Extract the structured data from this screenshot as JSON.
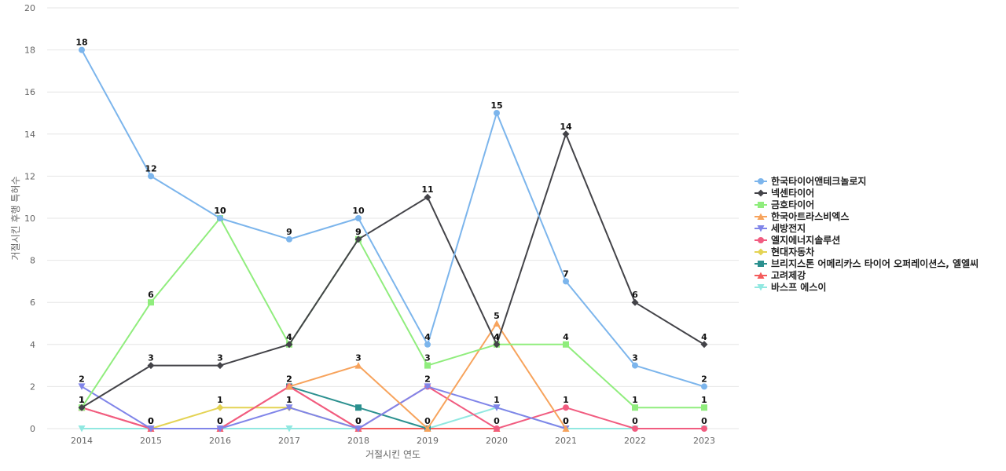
{
  "chart_data": {
    "type": "line",
    "xlabel": "거절시킨 연도",
    "ylabel": "거절시킨 후행 특허수",
    "ylim": [
      0,
      20
    ],
    "yticks": [
      0,
      2,
      4,
      6,
      8,
      10,
      12,
      14,
      16,
      18,
      20
    ],
    "categories": [
      "2014",
      "2015",
      "2016",
      "2017",
      "2018",
      "2019",
      "2020",
      "2021",
      "2022",
      "2023"
    ],
    "grid": true,
    "legend_position": "right",
    "series": [
      {
        "name": "한국타이어앤테크놀로지",
        "color": "#7cb5ec",
        "marker": "circle",
        "values": [
          18,
          12,
          10,
          9,
          10,
          4,
          15,
          7,
          3,
          2
        ],
        "labeled": true
      },
      {
        "name": "넥센타이어",
        "color": "#434348",
        "marker": "diamond",
        "values": [
          1,
          3,
          3,
          4,
          9,
          11,
          4,
          14,
          6,
          4
        ],
        "labeled": true
      },
      {
        "name": "금호타이어",
        "color": "#90ed7d",
        "marker": "square",
        "values": [
          1,
          6,
          10,
          4,
          9,
          3,
          4,
          4,
          1,
          1
        ],
        "labeled": true
      },
      {
        "name": "한국아트라스비엑스",
        "color": "#f7a35c",
        "marker": "triangle",
        "values": [
          null,
          null,
          null,
          2,
          3,
          0,
          5,
          0,
          null,
          null
        ],
        "labeled": true
      },
      {
        "name": "세방전지",
        "color": "#8085e9",
        "marker": "triangle-down",
        "values": [
          2,
          0,
          0,
          1,
          0,
          2,
          1,
          0,
          null,
          null
        ],
        "labeled": true
      },
      {
        "name": "엘지에너지솔루션",
        "color": "#f15c80",
        "marker": "circle",
        "values": [
          1,
          0,
          0,
          2,
          0,
          2,
          0,
          1,
          0,
          0
        ],
        "labeled": true
      },
      {
        "name": "현대자동차",
        "color": "#e4d354",
        "marker": "diamond",
        "values": [
          null,
          0,
          1,
          1,
          0,
          null,
          null,
          null,
          null,
          null
        ],
        "labeled": true
      },
      {
        "name": "브리지스톤 어메리카스 타이어 오퍼레이션스, 엘엘씨",
        "color": "#2b908f",
        "marker": "square",
        "values": [
          null,
          null,
          null,
          2,
          1,
          0,
          null,
          null,
          null,
          null
        ],
        "labeled": false
      },
      {
        "name": "고려제강",
        "color": "#f45b5b",
        "marker": "triangle",
        "values": [
          1,
          0,
          0,
          2,
          0,
          0,
          0,
          null,
          null,
          null
        ],
        "labeled": false
      },
      {
        "name": "바스프 에스이",
        "color": "#91e8e1",
        "marker": "triangle-down",
        "values": [
          0,
          0,
          0,
          0,
          0,
          0,
          1,
          0,
          0,
          0
        ],
        "labeled": false
      }
    ]
  }
}
